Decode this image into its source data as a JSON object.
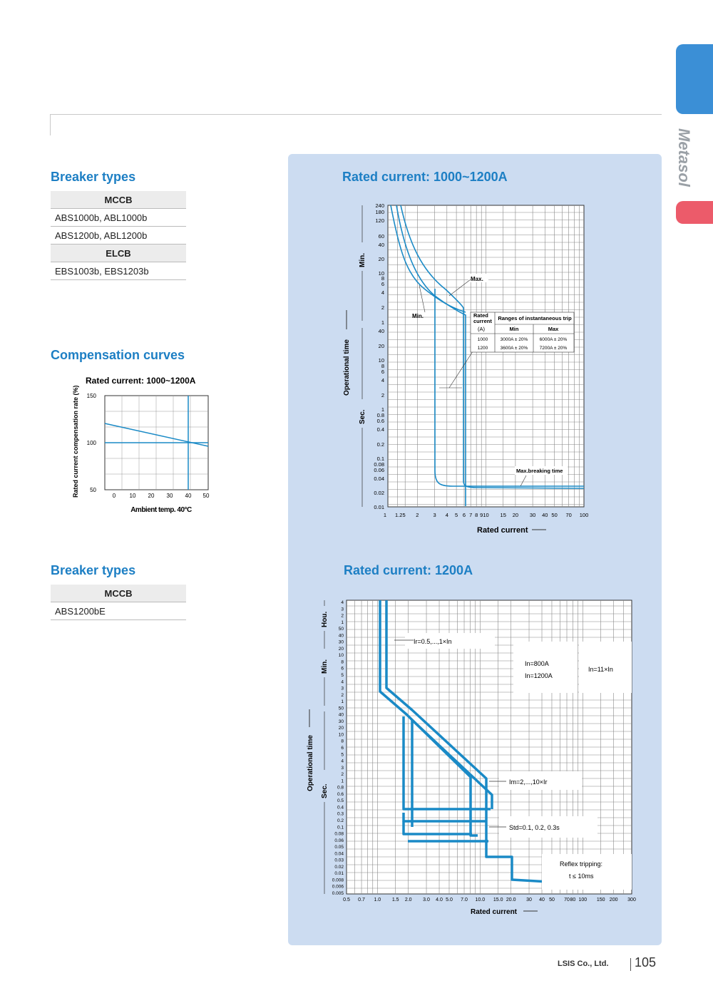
{
  "brand": "Metasol",
  "colors": {
    "accent_blue": "#1d7fc4",
    "tab_blue": "#3b8fd6",
    "tab_red": "#ec5b6a",
    "panel": "#ccdcf1",
    "curve": "#1a8ac6"
  },
  "section1": {
    "title": "Breaker types",
    "table": [
      {
        "type": "header",
        "text": "MCCB"
      },
      {
        "type": "row",
        "text": "ABS1000b, ABL1000b"
      },
      {
        "type": "row",
        "text": "ABS1200b, ABL1200b"
      },
      {
        "type": "header",
        "text": "ELCB"
      },
      {
        "type": "row",
        "text": "EBS1003b, EBS1203b"
      }
    ]
  },
  "compensation": {
    "title": "Compensation curves",
    "chart_title": "Rated current: 1000~1200A",
    "ylabel": "Rated current compensation rate (%)",
    "xlabel": "Ambient temp. 40°C",
    "yticks": [
      "150",
      "100",
      "50"
    ],
    "xticks": [
      "0",
      "10",
      "20",
      "30",
      "40",
      "50"
    ]
  },
  "curve1": {
    "title": "Rated current: 1000~1200A",
    "ylabel": "Operational time",
    "xlabel": "Rated current",
    "min_label": "Min.",
    "sec_label": "Sec.",
    "min_ticks": [
      "240",
      "180",
      "120",
      "60",
      "40",
      "20",
      "10",
      "8",
      "6",
      "4",
      "2",
      "1"
    ],
    "sec_ticks": [
      "40",
      "20",
      "10",
      "8",
      "6",
      "4",
      "2",
      "1",
      "0.8",
      "0.6",
      "0.4",
      "0.2",
      "0.1",
      "0.08",
      "0.06",
      "0.04",
      "0.02",
      "0.01"
    ],
    "xticks": [
      "1",
      "1.25",
      "2",
      "3",
      "4",
      "5",
      "6",
      "7",
      "8",
      "9",
      "10",
      "15",
      "20",
      "30",
      "40",
      "50",
      "70",
      "100"
    ],
    "ann_max": "Max.",
    "ann_min": "Min.",
    "ann_breaking": "Max.breaking time",
    "inst_table": {
      "h1a": "Rated",
      "h1b": "current",
      "h1c": "(A)",
      "h2": "Ranges of instantaneous trip",
      "h_min": "Min",
      "h_max": "Max",
      "rows": [
        {
          "current": "1000",
          "min": "3000A ± 20%",
          "max": "6000A ± 20%"
        },
        {
          "current": "1200",
          "min": "3600A ± 20%",
          "max": "7200A ± 20%"
        }
      ]
    }
  },
  "section2": {
    "title": "Breaker types",
    "table": [
      {
        "type": "header",
        "text": "MCCB"
      },
      {
        "type": "row",
        "text": "ABS1200bE"
      }
    ]
  },
  "curve2": {
    "title": "Rated current: 1200A",
    "ylabel": "Operational time",
    "xlabel": "Rated current",
    "hou_label": "Hou.",
    "min_label": "Min.",
    "sec_label": "Sec.",
    "hou_ticks": [
      "4",
      "3",
      "2",
      "1"
    ],
    "min_ticks": [
      "50",
      "40",
      "30",
      "20",
      "10",
      "8",
      "6",
      "5",
      "4",
      "3",
      "2",
      "1"
    ],
    "sec_ticks": [
      "50",
      "40",
      "30",
      "20",
      "10",
      "8",
      "6",
      "5",
      "4",
      "3",
      "2",
      "1",
      "0.8",
      "0.6",
      "0.5",
      "0.4",
      "0.3",
      "0.2",
      "0.1",
      "0.08",
      "0.06",
      "0.05",
      "0.04",
      "0.03",
      "0.02",
      "0.01",
      "0.008",
      "0.006",
      "0.005"
    ],
    "xticks": [
      "0.5",
      "0.7",
      "1.0",
      "1.5",
      "2.0",
      "3.0",
      "4.0",
      "5.0",
      "7.0",
      "10.0",
      "15.0",
      "20.0",
      "30",
      "40",
      "50",
      "70",
      "80",
      "100",
      "150",
      "200",
      "300"
    ],
    "ann_ir": "Ir=0.5,...,1×In",
    "ann_in_a": "In=800A",
    "ann_in_b": "In=1200A",
    "ann_in11": "In=11×In",
    "ann_im": "Im=2,...,10×Ir",
    "ann_std": "Std=0.1, 0.2, 0.3s",
    "ann_reflex_a": "Reflex tripping:",
    "ann_reflex_b": "t ≤ 10ms"
  },
  "footer": {
    "company": "LSIS Co., Ltd.",
    "page": "105"
  }
}
